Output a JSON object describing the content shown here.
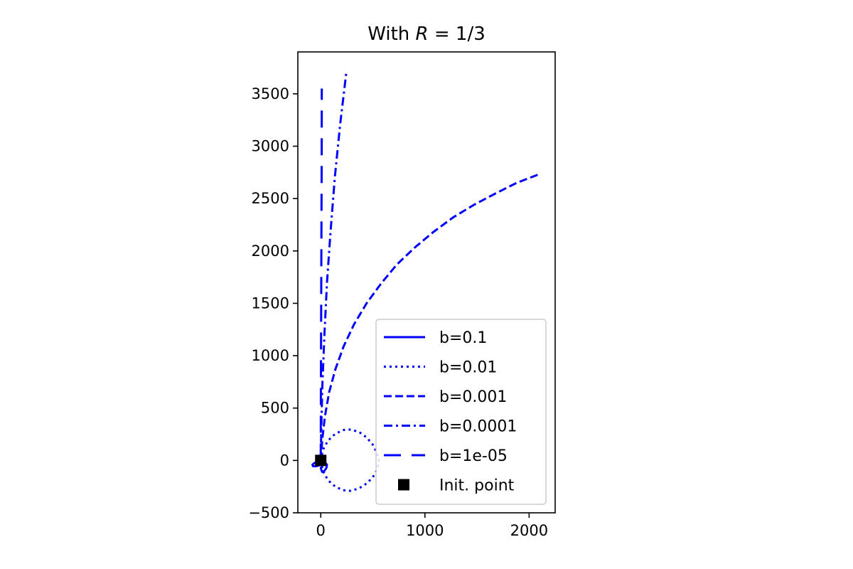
{
  "chart_data": {
    "type": "line",
    "title": "With R = 1/3",
    "title_parts": {
      "prefix": "With ",
      "var": "R",
      "suffix": " = 1/3"
    },
    "xlabel": "",
    "ylabel": "",
    "xlim": [
      -220,
      2250
    ],
    "ylim": [
      -500,
      3900
    ],
    "xticks": [
      0,
      1000,
      2000
    ],
    "yticks": [
      -500,
      0,
      500,
      1000,
      1500,
      2000,
      2500,
      3000,
      3500
    ],
    "xtick_labels": [
      "0",
      "1000",
      "2000"
    ],
    "ytick_labels": [
      "−500",
      "0",
      "500",
      "1000",
      "1500",
      "2000",
      "2500",
      "3000",
      "3500"
    ],
    "grid": false,
    "legend_position": "lower right",
    "color": "#0000ff",
    "series": [
      {
        "name": "b=0.1",
        "style": "solid",
        "x": [
          0,
          -30,
          -60,
          -80,
          -75,
          -45,
          -10,
          20,
          45,
          60,
          55,
          35,
          15,
          5,
          0
        ],
        "y": [
          0,
          -10,
          -25,
          -40,
          -55,
          -55,
          -45,
          -30,
          -25,
          -40,
          -70,
          -100,
          -110,
          -90,
          -60
        ]
      },
      {
        "name": "b=0.01",
        "style": "dotted",
        "x": [
          0,
          20,
          70,
          140,
          215,
          290,
          370,
          440,
          500,
          540,
          560,
          540,
          500,
          440,
          370,
          290,
          215,
          140,
          70,
          20,
          5
        ],
        "y": [
          0,
          100,
          190,
          255,
          290,
          295,
          270,
          220,
          150,
          70,
          -10,
          -90,
          -160,
          -220,
          -265,
          -290,
          -285,
          -250,
          -190,
          -100,
          -20
        ]
      },
      {
        "name": "b=0.001",
        "style": "dashed",
        "x": [
          0,
          15,
          40,
          80,
          140,
          220,
          320,
          440,
          580,
          730,
          900,
          1080,
          1270,
          1470,
          1680,
          1880,
          2090
        ],
        "y": [
          0,
          200,
          420,
          650,
          870,
          1090,
          1300,
          1500,
          1690,
          1870,
          2030,
          2180,
          2320,
          2440,
          2550,
          2650,
          2730
        ]
      },
      {
        "name": "b=0.0001",
        "style": "dashdot",
        "x": [
          0,
          5,
          15,
          35,
          60,
          95,
          135,
          185,
          245
        ],
        "y": [
          0,
          300,
          700,
          1200,
          1700,
          2200,
          2700,
          3200,
          3700
        ]
      },
      {
        "name": "b=1e-05",
        "style": "longdash",
        "x": [
          0,
          1,
          3,
          5,
          7,
          9,
          10
        ],
        "y": [
          0,
          600,
          1200,
          1800,
          2400,
          3000,
          3550
        ]
      },
      {
        "name": "Init. point",
        "style": "marker-square",
        "x": [
          0
        ],
        "y": [
          0
        ]
      }
    ]
  }
}
